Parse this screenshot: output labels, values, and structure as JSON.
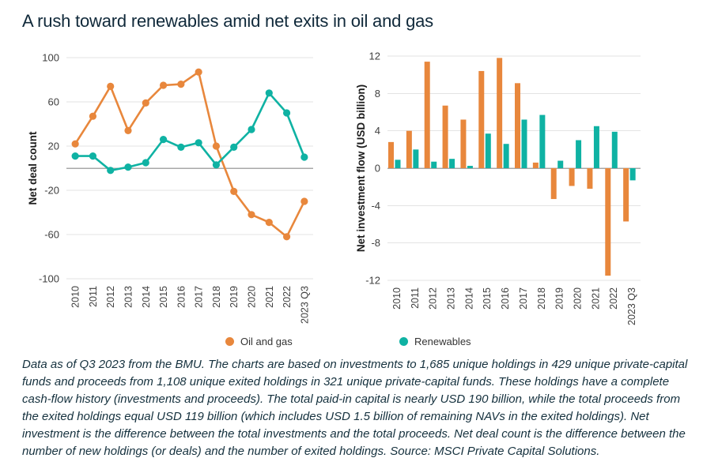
{
  "title": "A rush toward renewables amid net exits in oil and gas",
  "colors": {
    "oil_gas": "#E8873C",
    "renewables": "#0FB2A3",
    "grid": "#E3E3E3",
    "zero_line": "#A8A8A8",
    "title_text": "#10293A",
    "footnote_text": "#15313E",
    "tick_text": "#3F3F3F"
  },
  "legend": {
    "items": [
      {
        "label": "Oil and gas",
        "color": "#E8873C"
      },
      {
        "label": "Renewables",
        "color": "#0FB2A3"
      }
    ]
  },
  "chart_data": [
    {
      "type": "line",
      "title": "",
      "xlabel": "",
      "ylabel": "Net deal count",
      "categories": [
        "2010",
        "2011",
        "2012",
        "2013",
        "2014",
        "2015",
        "2016",
        "2017",
        "2018",
        "2019",
        "2020",
        "2021",
        "2022",
        "2023 Q3"
      ],
      "ylim": [
        -100,
        100
      ],
      "yticks": [
        100,
        60,
        20,
        -20,
        -60,
        -100
      ],
      "zero_line": true,
      "grid": true,
      "legend_position": "bottom",
      "series": [
        {
          "name": "Oil and gas",
          "color": "#E8873C",
          "values": [
            22,
            47,
            74,
            34,
            59,
            75,
            76,
            87,
            20,
            -21,
            -42,
            -49,
            -62,
            -30
          ]
        },
        {
          "name": "Renewables",
          "color": "#0FB2A3",
          "values": [
            11,
            11,
            -2,
            1,
            5,
            26,
            19,
            23,
            3,
            19,
            35,
            68,
            50,
            10
          ]
        }
      ]
    },
    {
      "type": "bar",
      "title": "",
      "xlabel": "",
      "ylabel": "Net investment flow (USD billion)",
      "categories": [
        "2010",
        "2011",
        "2012",
        "2013",
        "2014",
        "2015",
        "2016",
        "2017",
        "2018",
        "2019",
        "2020",
        "2021",
        "2022",
        "2023 Q3"
      ],
      "ylim": [
        -12,
        12
      ],
      "yticks": [
        12,
        8,
        4,
        0,
        -4,
        -8,
        -12
      ],
      "zero_line": true,
      "grid": true,
      "legend_position": "bottom",
      "series": [
        {
          "name": "Oil and gas",
          "color": "#E8873C",
          "values": [
            2.8,
            4.0,
            11.4,
            6.7,
            5.2,
            10.4,
            11.8,
            9.1,
            0.6,
            -3.3,
            -1.9,
            -2.2,
            -11.5,
            -5.7
          ]
        },
        {
          "name": "Renewables",
          "color": "#0FB2A3",
          "values": [
            0.9,
            2.0,
            0.7,
            1.0,
            0.25,
            3.7,
            2.6,
            5.2,
            5.7,
            0.8,
            3.0,
            4.5,
            3.9,
            -1.3
          ]
        }
      ]
    }
  ],
  "footnote": "Data as of Q3 2023 from the BMU. The charts are based on investments to 1,685 unique holdings in 429 unique private-capital funds and proceeds from 1,108 unique exited holdings in 321 unique private-capital funds. These holdings have a complete cash-flow history (investments and proceeds). The total paid-in capital is nearly USD 190 billion, while the total proceeds from the exited holdings equal USD 119 billion (which includes USD 1.5 billion of remaining NAVs in the exited holdings). Net investment is the difference between the total investments and the total proceeds. Net deal count is the difference between the number of new holdings (or deals) and the number of exited holdings. Source: MSCI Private Capital Solutions."
}
